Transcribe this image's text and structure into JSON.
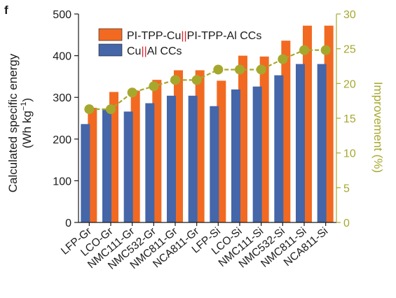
{
  "panel_label": "f",
  "colors": {
    "pi_bar": "#f26a21",
    "al_bar": "#4566a8",
    "improvement": "#a6a82e",
    "axis": "#1a1a1a",
    "separator_red": "#e41e2b"
  },
  "legend": {
    "pi_label_part1": "PI-TPP-Cu",
    "pi_label_sep": "||",
    "pi_label_part2": "PI-TPP-Al CCs",
    "al_label_part1": "Cu",
    "al_label_sep": "||",
    "al_label_part2": "Al CCs"
  },
  "chart_data": {
    "type": "bar",
    "categories": [
      "LFP-Gr",
      "LCO-Gr",
      "NMC111-Gr",
      "NMC532-Gr",
      "NMC811-Gr",
      "NCA811-Gr",
      "LFP-Si",
      "LCO-Si",
      "NMC111-Si",
      "NMC532-Si",
      "NMC811-Si",
      "NCA811-Si"
    ],
    "series": [
      {
        "name": "PI-TPP-Cu||PI-TPP-Al CCs",
        "axis": "left",
        "kind": "bar",
        "values": [
          275,
          313,
          316,
          342,
          365,
          365,
          340,
          400,
          398,
          436,
          472,
          472
        ]
      },
      {
        "name": "Cu||Al CCs",
        "axis": "left",
        "kind": "bar",
        "values": [
          236,
          270,
          266,
          286,
          304,
          304,
          279,
          319,
          326,
          353,
          380,
          380
        ]
      },
      {
        "series_label": "Improvement",
        "axis": "right",
        "kind": "line",
        "values": [
          16.3,
          16.3,
          18.7,
          19.6,
          20.5,
          20.5,
          22.0,
          22.0,
          22.0,
          23.5,
          24.8,
          24.8
        ]
      }
    ],
    "ylabel_left_line1": "Calculated specific energy",
    "ylabel_left_line2_prefix": "(Wh kg",
    "ylabel_left_line2_sup": "−1",
    "ylabel_left_line2_suffix": ")",
    "ylabel_right": "Improvement (%)",
    "ylim_left": [
      0,
      500
    ],
    "ylim_right": [
      0,
      30
    ],
    "yticks_left": [
      0,
      100,
      200,
      300,
      400,
      500
    ],
    "yticks_right": [
      0,
      5,
      10,
      15,
      20,
      25,
      30
    ],
    "grid": false
  }
}
